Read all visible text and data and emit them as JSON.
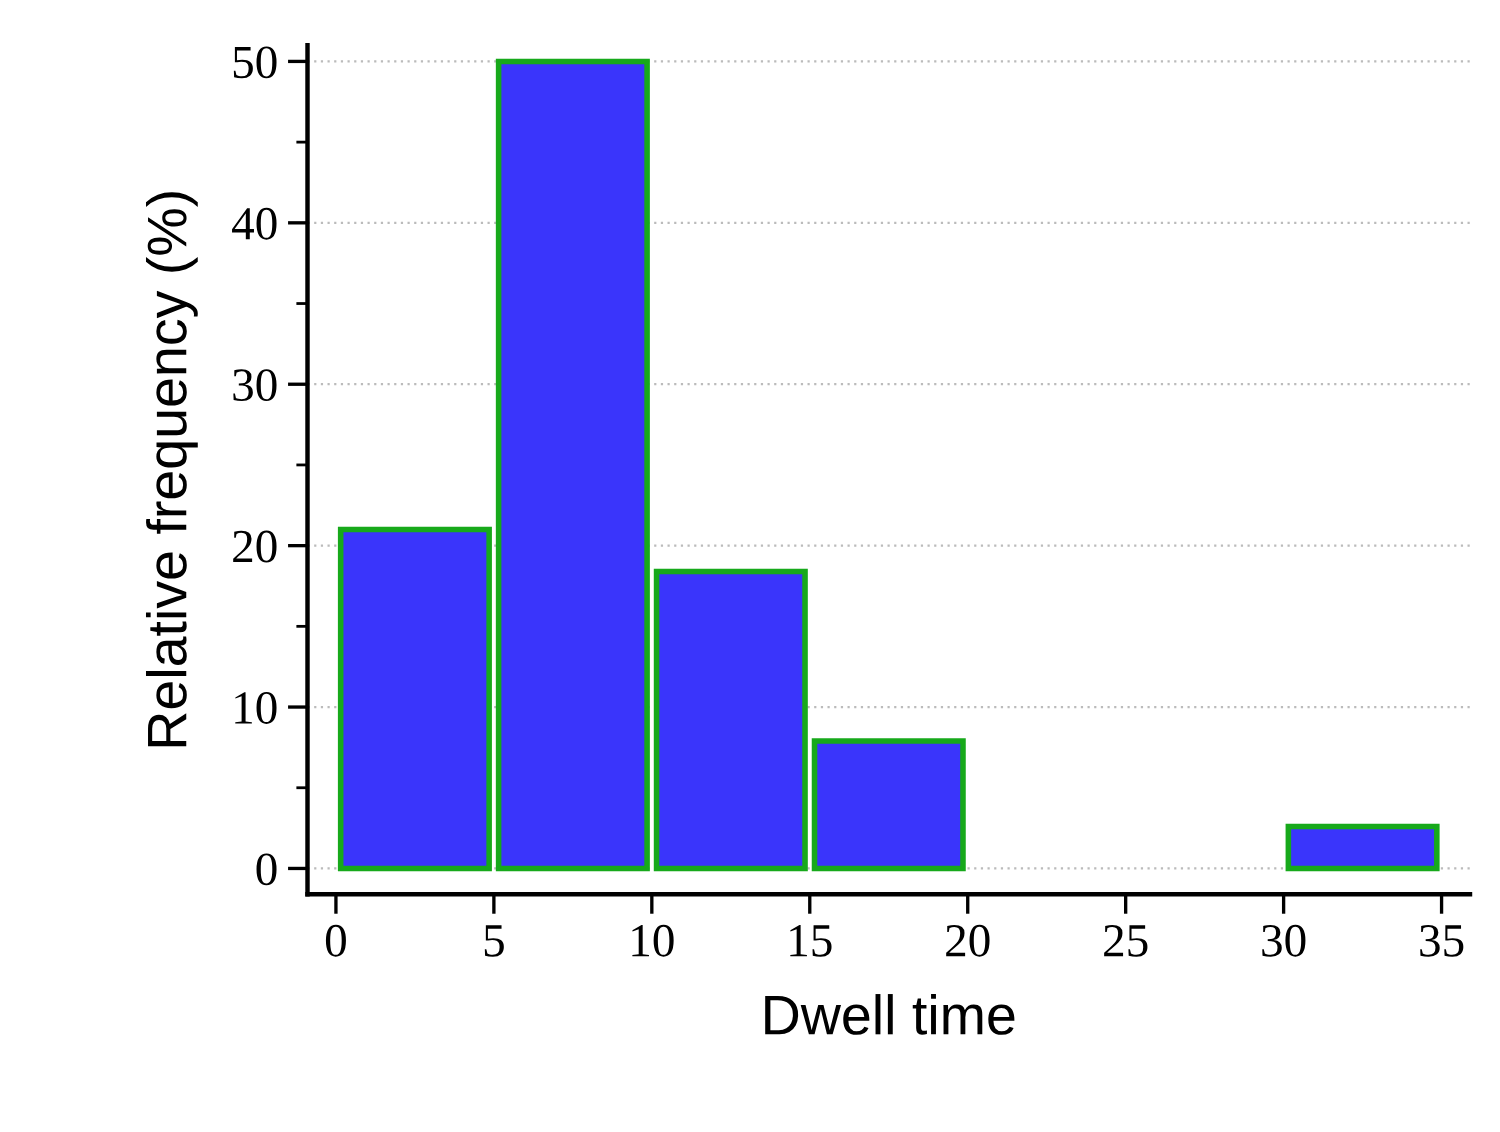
{
  "chart_data": {
    "type": "histogram",
    "xlabel": "Dwell time",
    "ylabel": "Relative frequency (%)",
    "bins": [
      0,
      5,
      10,
      15,
      20,
      25,
      30,
      35
    ],
    "values": [
      21,
      50,
      18.4,
      7.9,
      0,
      0,
      2.6
    ],
    "color": "#3a35fb",
    "xlim": [
      -0.9,
      35.9
    ],
    "ylim": [
      -1.6,
      51
    ],
    "xticks": [
      0,
      5,
      10,
      15,
      20,
      25,
      30,
      35
    ],
    "yticks": [
      0,
      10,
      20,
      30,
      40,
      50
    ],
    "grid": "y"
  }
}
